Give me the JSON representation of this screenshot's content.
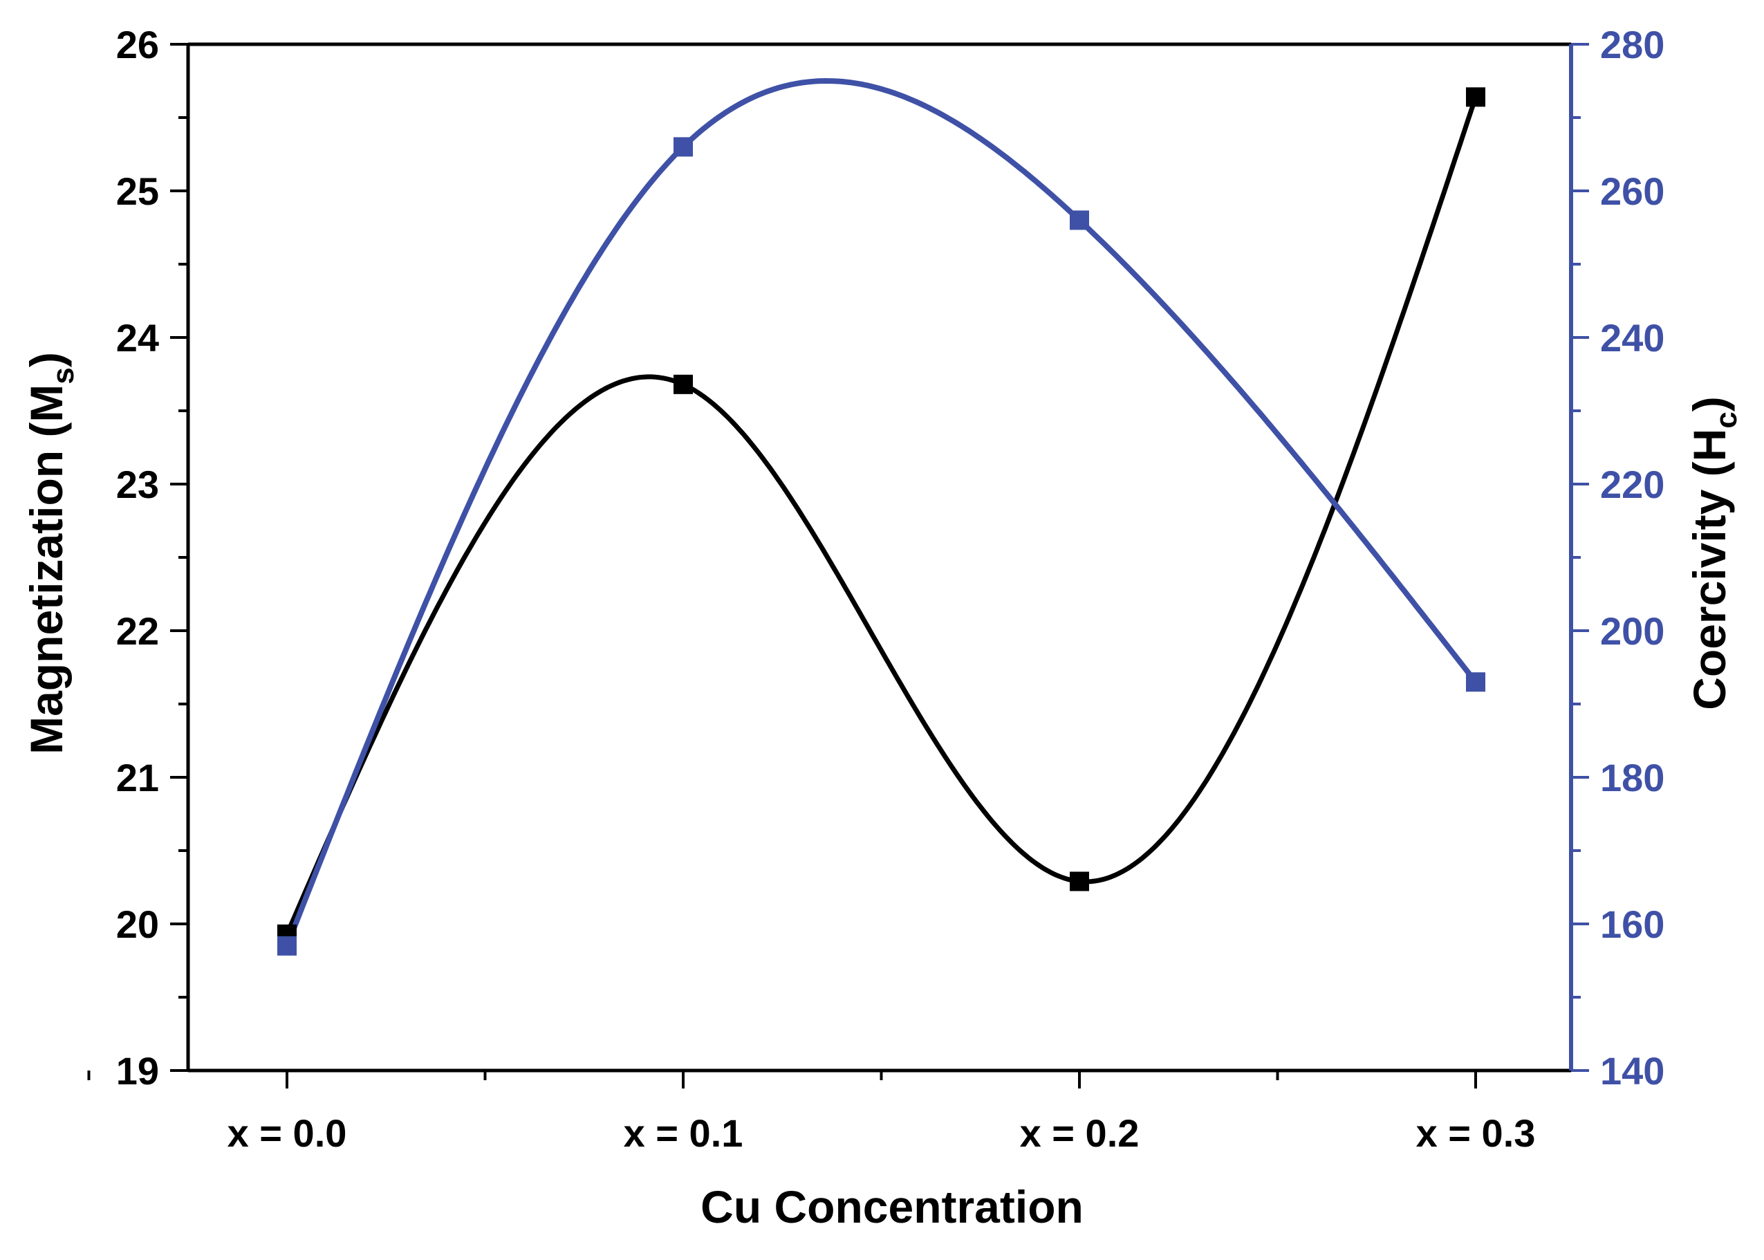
{
  "chart_data": {
    "type": "line",
    "categories": [
      "x = 0.0",
      "x = 0.1",
      "x = 0.2",
      "x = 0.3"
    ],
    "xlabel": "Cu Concentration",
    "ylabel_left": {
      "main": "Magnetization (M",
      "sub": "s",
      "close": ")"
    },
    "ylabel_right": {
      "main": "Coercivity (H",
      "sub": "c",
      "close": ")"
    },
    "ylim_left": [
      19,
      26
    ],
    "ylim_right": [
      140,
      280
    ],
    "yticks_left": [
      "19",
      "20",
      "21",
      "22",
      "23",
      "24",
      "25",
      "26"
    ],
    "yticks_right": [
      "140",
      "160",
      "180",
      "200",
      "220",
      "240",
      "260",
      "280"
    ],
    "series": [
      {
        "axis": "left",
        "color": "#000000",
        "values": [
          19.93,
          23.68,
          20.29,
          25.64
        ]
      },
      {
        "axis": "right",
        "color": "#3f51a6",
        "values": [
          157,
          266,
          256,
          193
        ]
      }
    ],
    "grid": false,
    "legend": "none",
    "smooth": true
  }
}
